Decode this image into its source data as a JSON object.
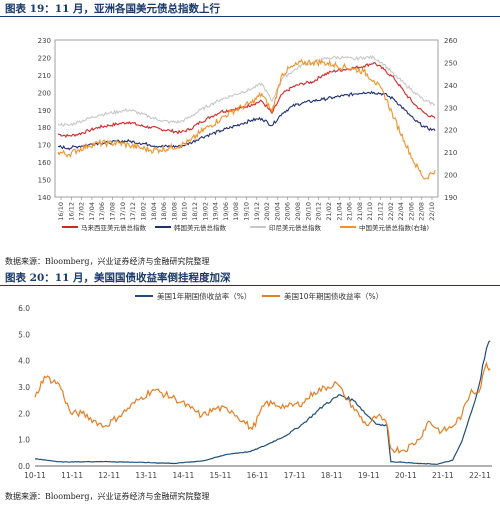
{
  "figure1": {
    "title": "图表 19：11 月，亚洲各国美元债总指数上行",
    "source": "数据来源：Bloomberg，兴业证券经济与金融研究院整理"
  },
  "figure2": {
    "title": "图表 20：11 月，美国国债收益率倒挂程度加深",
    "source": "数据来源：Bloomberg，兴业证券经济与金融研究院整理"
  },
  "chart_data": [
    {
      "type": "line",
      "title": "",
      "ylim_left": [
        140,
        230
      ],
      "ylim_right": [
        190,
        260
      ],
      "yticks_left": [
        140,
        150,
        160,
        170,
        180,
        190,
        200,
        210,
        220,
        230
      ],
      "yticks_right": [
        190,
        200,
        210,
        220,
        230,
        240,
        250,
        260
      ],
      "x_ticks": [
        "16/10",
        "16/12",
        "17/02",
        "17/04",
        "17/06",
        "17/08",
        "17/10",
        "17/12",
        "18/02",
        "18/04",
        "18/06",
        "18/08",
        "18/10",
        "18/12",
        "19/02",
        "19/04",
        "19/06",
        "19/08",
        "19/10",
        "19/12",
        "20/02",
        "20/04",
        "20/06",
        "20/08",
        "20/10",
        "20/12",
        "21/02",
        "21/04",
        "21/06",
        "21/08",
        "21/10",
        "21/12",
        "22/02",
        "22/04",
        "22/06",
        "22/08",
        "22/10"
      ],
      "legend_position": "bottom",
      "series": [
        {
          "name": "马来西亚美元债总指数",
          "axis": "left",
          "color": "#d62728",
          "values": [
            176,
            175,
            176,
            178,
            180,
            181,
            182,
            183,
            181,
            180,
            179,
            178,
            177,
            179,
            183,
            186,
            189,
            190,
            191,
            193,
            195,
            188,
            199,
            203,
            205,
            206,
            210,
            212,
            213,
            214,
            215,
            217,
            213,
            208,
            200,
            193,
            188,
            185
          ]
        },
        {
          "name": "韩国美元债总指数",
          "axis": "left",
          "color": "#1f2f6f",
          "values": [
            169,
            168,
            169,
            170,
            171,
            171,
            172,
            172,
            171,
            170,
            169,
            169,
            169,
            171,
            174,
            176,
            178,
            180,
            182,
            184,
            185,
            181,
            188,
            192,
            194,
            195,
            196,
            197,
            198,
            199,
            200,
            200,
            199,
            196,
            190,
            184,
            180,
            178
          ]
        },
        {
          "name": "印尼美元债总指数",
          "axis": "left",
          "color": "#c8c8c8",
          "values": [
            182,
            181,
            183,
            185,
            187,
            188,
            189,
            190,
            188,
            186,
            184,
            183,
            183,
            186,
            190,
            193,
            196,
            198,
            200,
            202,
            205,
            195,
            208,
            212,
            216,
            217,
            219,
            220,
            220,
            219,
            220,
            220,
            216,
            210,
            205,
            200,
            195,
            193
          ]
        },
        {
          "name": "中国美元债总指数(右轴)",
          "axis": "right",
          "color": "#f0932b",
          "values": [
            210,
            209,
            211,
            213,
            214,
            214,
            214,
            213,
            212,
            211,
            211,
            212,
            213,
            215,
            219,
            222,
            225,
            228,
            230,
            232,
            236,
            228,
            245,
            248,
            250,
            250,
            250,
            249,
            248,
            247,
            246,
            242,
            236,
            225,
            215,
            205,
            198,
            202
          ]
        }
      ]
    },
    {
      "type": "line",
      "title": "",
      "ylim": [
        0,
        6
      ],
      "yticks": [
        "0.0",
        "1.0",
        "2.0",
        "3.0",
        "4.0",
        "5.0",
        "6.0"
      ],
      "x_ticks": [
        "10-11",
        "11-11",
        "12-11",
        "13-11",
        "14-11",
        "15-11",
        "16-11",
        "17-11",
        "18-11",
        "19-11",
        "20-11",
        "21-11",
        "22-11"
      ],
      "legend_position": "top",
      "series": [
        {
          "name": "美国1年期国债收益率（%）",
          "color": "#1f4e79",
          "x": [
            2010.75,
            2011.5,
            2012.5,
            2013.5,
            2014.5,
            2015.25,
            2015.9,
            2016.5,
            2016.9,
            2017.5,
            2017.9,
            2018.5,
            2018.9,
            2019.3,
            2019.6,
            2019.9,
            2020.15,
            2020.25,
            2020.6,
            2021.0,
            2021.5,
            2021.9,
            2022.15,
            2022.4,
            2022.6,
            2022.8,
            2022.9
          ],
          "values": [
            0.27,
            0.15,
            0.17,
            0.14,
            0.1,
            0.2,
            0.45,
            0.55,
            0.78,
            1.2,
            1.6,
            2.35,
            2.7,
            2.45,
            1.95,
            1.58,
            1.52,
            0.16,
            0.14,
            0.09,
            0.07,
            0.22,
            0.95,
            2.05,
            3.05,
            4.45,
            4.75
          ]
        },
        {
          "name": "美国10年期国债收益率（%）",
          "color": "#e67e22",
          "x": [
            2010.75,
            2011.0,
            2011.4,
            2011.7,
            2012.0,
            2012.6,
            2013.0,
            2013.5,
            2013.9,
            2014.5,
            2014.9,
            2015.2,
            2015.6,
            2016.0,
            2016.55,
            2016.9,
            2017.5,
            2017.9,
            2018.2,
            2018.8,
            2019.0,
            2019.6,
            2019.9,
            2020.15,
            2020.25,
            2020.6,
            2021.0,
            2021.25,
            2021.6,
            2021.9,
            2022.15,
            2022.4,
            2022.6,
            2022.8,
            2022.9
          ],
          "values": [
            2.6,
            3.4,
            3.1,
            2.0,
            2.0,
            1.5,
            1.9,
            2.5,
            2.9,
            2.55,
            2.2,
            1.9,
            2.2,
            2.1,
            1.4,
            2.4,
            2.25,
            2.4,
            2.8,
            3.15,
            2.7,
            1.55,
            1.9,
            1.55,
            0.65,
            0.6,
            1.0,
            1.7,
            1.3,
            1.5,
            1.95,
            2.9,
            2.8,
            3.9,
            3.7
          ]
        }
      ]
    }
  ]
}
